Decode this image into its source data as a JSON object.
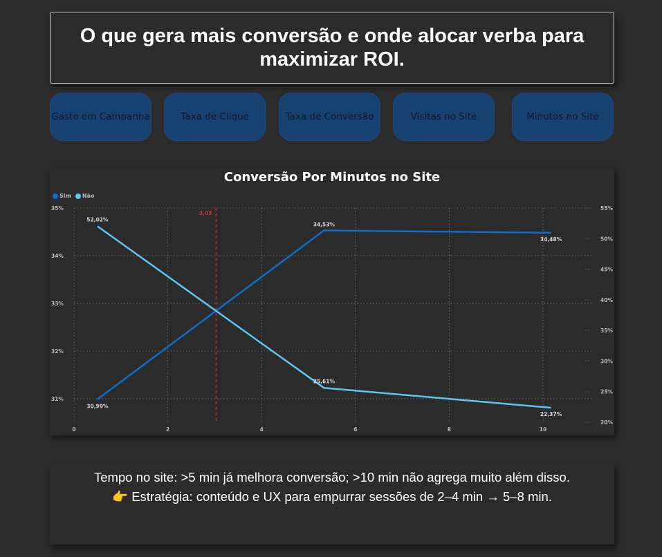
{
  "header": {
    "title": "O que gera mais conversão e onde alocar verba para maximizar ROI."
  },
  "nav": {
    "buttons": [
      {
        "label": "Gasto em Campanha"
      },
      {
        "label": "Taxa de Clique"
      },
      {
        "label": "Taxa de Conversão"
      },
      {
        "label": "Visitas no Site"
      },
      {
        "label": "Minutos no Site"
      }
    ]
  },
  "chart": {
    "title": "Conversão Por Minutos no Site",
    "legend": [
      {
        "label": "Sim",
        "color": "#0f6cc9"
      },
      {
        "label": "Não",
        "color": "#5cc7f5"
      }
    ],
    "reference_line_label": "3,03",
    "reference_line_color": "#a4262c"
  },
  "chart_data": {
    "type": "line",
    "title": "Conversão Por Minutos no Site",
    "xlabel": "",
    "ylabel": "",
    "x": [
      0.5,
      5.33,
      10.17
    ],
    "x_ticks": [
      "0",
      "2",
      "4",
      "6",
      "8",
      "10"
    ],
    "xlim": [
      0,
      11.2
    ],
    "series": [
      {
        "name": "Sim",
        "axis": "left",
        "color": "#0f6cc9",
        "values": [
          30.99,
          34.53,
          34.48
        ],
        "labels": [
          "30,99%",
          "34,53%",
          "34,48%"
        ]
      },
      {
        "name": "Não",
        "axis": "right",
        "color": "#5cc7f5",
        "values": [
          52.02,
          25.61,
          22.37
        ],
        "labels": [
          "52,02%",
          "25,61%",
          "22,37%"
        ]
      }
    ],
    "y_left": {
      "ticks": [
        "35%",
        "34%",
        "33%",
        "32%",
        "31%"
      ],
      "ylim": [
        30.5,
        35
      ]
    },
    "y_right": {
      "ticks": [
        "55%",
        "50%",
        "45%",
        "40%",
        "35%",
        "30%",
        "25%",
        "20%"
      ],
      "ylim": [
        20,
        55
      ]
    },
    "reference_line": {
      "x": 3.03,
      "label": "3,03"
    },
    "grid": true,
    "legend_position": "top-left"
  },
  "insight": {
    "line1": "Tempo no site: >5 min já melhora conversão; >10 min não agrega muito além disso.",
    "line2_icon": "👉",
    "line2": "Estratégia: conteúdo e UX para empurrar sessões de 2–4 min → 5–8 min."
  }
}
